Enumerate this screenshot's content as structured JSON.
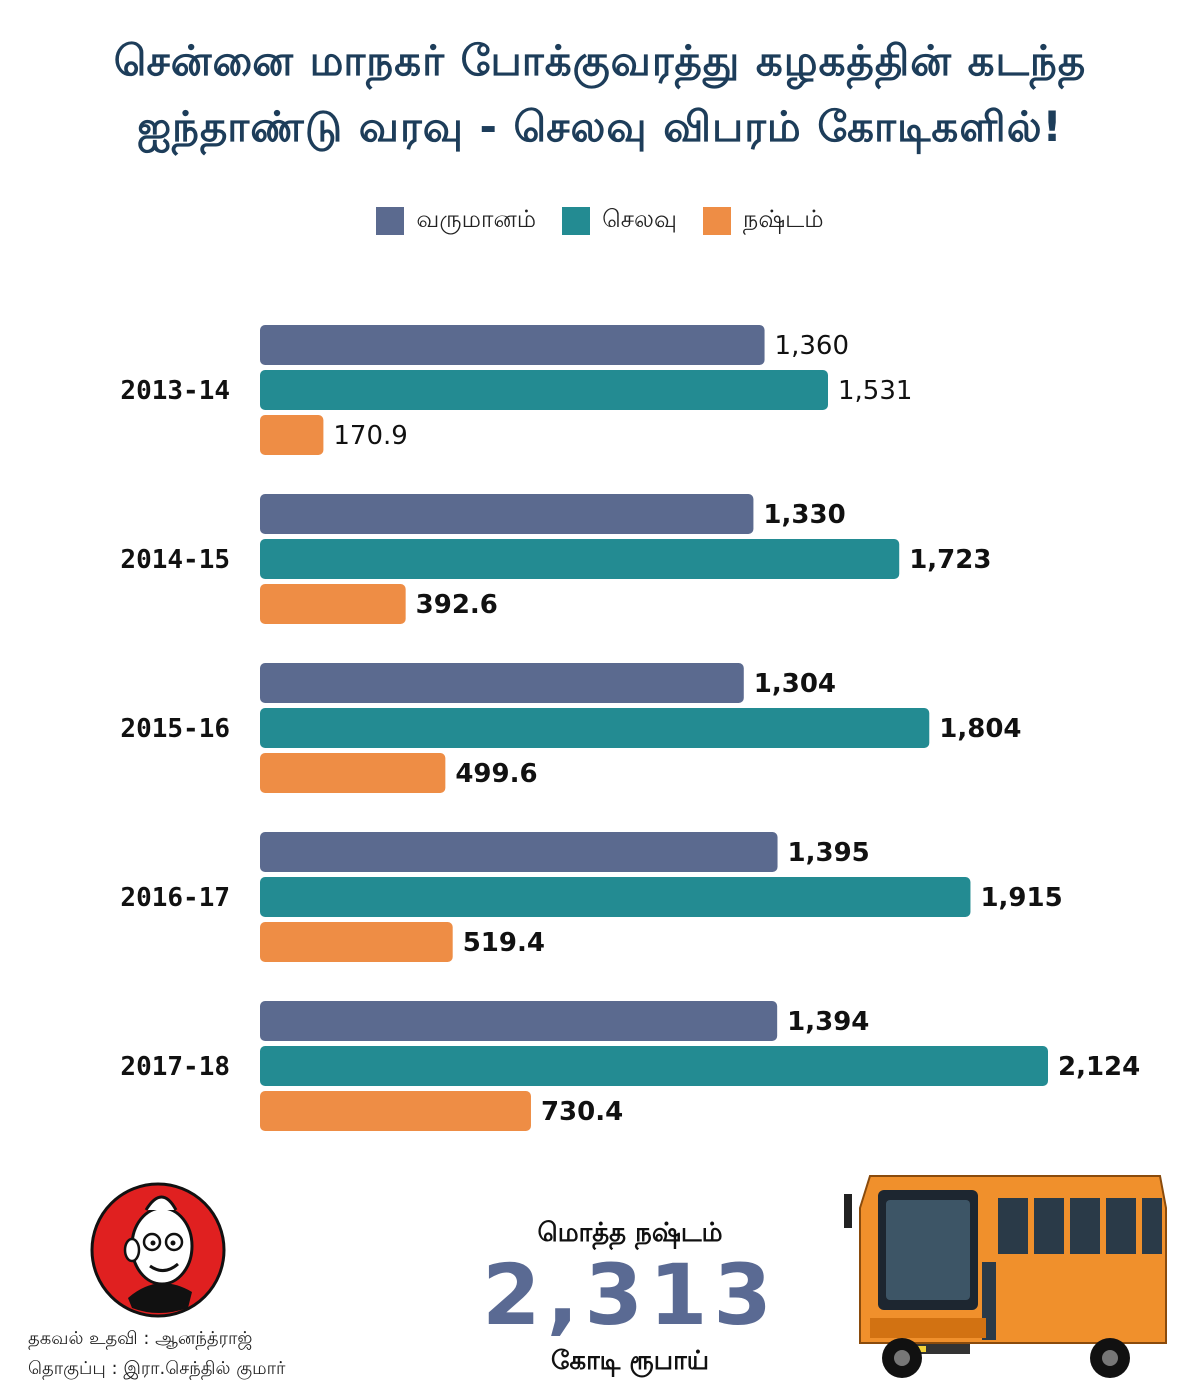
{
  "title": {
    "line1": "சென்னை மாநகர் போக்குவரத்து கழகத்தின் கடந்த",
    "line2": "ஐந்தாண்டு வரவு - செலவு விபரம் கோடிகளில்!"
  },
  "colors": {
    "income": "#5b6a8f",
    "expense": "#238b92",
    "loss": "#ee8d45",
    "title": "#1d3d5a"
  },
  "chart_data": {
    "type": "bar",
    "orientation": "horizontal",
    "categories": [
      "2013-14",
      "2014-15",
      "2015-16",
      "2016-17",
      "2017-18"
    ],
    "series": [
      {
        "name": "வருமானம்",
        "values": [
          1360,
          1330,
          1304,
          1395,
          1394
        ],
        "labels": [
          "1,360",
          "1,330",
          "1,304",
          "1,395",
          "1,394"
        ]
      },
      {
        "name": "செலவு",
        "values": [
          1531,
          1723,
          1804,
          1915,
          2124
        ],
        "labels": [
          "1,531",
          "1,723",
          "1,804",
          "1,915",
          "2,124"
        ]
      },
      {
        "name": "நஷ்டம்",
        "values": [
          170.9,
          392.6,
          499.6,
          519.4,
          730.4
        ],
        "labels": [
          "170.9",
          "392.6",
          "499.6",
          "519.4",
          "730.4"
        ]
      }
    ],
    "legend_position": "top-center",
    "grid": false
  },
  "total": {
    "caption": "மொத்த நஷ்டம்",
    "value": "2,313",
    "unit": "கோடி ரூபாய்"
  },
  "credits": {
    "info": "தகவல் உதவி : ஆனந்த்ராஜ்",
    "compiled": "தொகுப்பு : இரா.செந்தில் குமார்"
  },
  "icons": {
    "logo": "cartoon-mascot-logo-icon",
    "bus": "orange-city-bus-icon"
  }
}
